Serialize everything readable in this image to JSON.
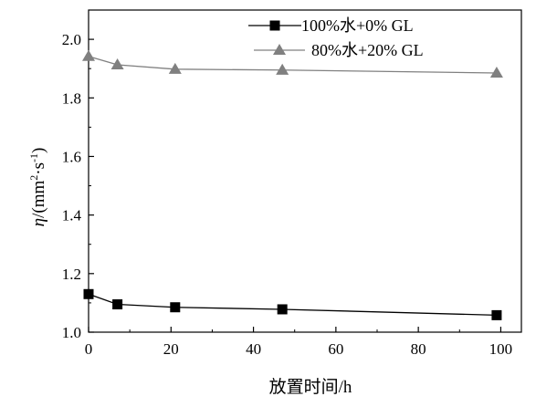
{
  "chart_data": {
    "type": "line",
    "title": "",
    "xlabel": "放置时间/h",
    "ylabel": "η/(mm²·s⁻¹)",
    "ylabel_parts": {
      "eta": "η",
      "open": "/(mm",
      "sup2": "2",
      "dot": "·s",
      "supm1": "-1",
      "close": ")"
    },
    "xlim": [
      0,
      105
    ],
    "ylim": [
      1.0,
      2.1
    ],
    "xticks": [
      0,
      20,
      40,
      60,
      80,
      100
    ],
    "yticks": [
      1.0,
      1.2,
      1.4,
      1.6,
      1.8,
      2.0
    ],
    "xtick_labels": [
      "0",
      "20",
      "40",
      "60",
      "80",
      "100"
    ],
    "ytick_labels": [
      "1.0",
      "1.2",
      "1.4",
      "1.6",
      "1.8",
      "2.0"
    ],
    "grid": false,
    "legend_position": "top-right",
    "series": [
      {
        "name": "100%水+0% GL",
        "marker": "square",
        "color": "#000000",
        "x": [
          0,
          7,
          21,
          47,
          99
        ],
        "y": [
          1.13,
          1.095,
          1.085,
          1.078,
          1.058
        ]
      },
      {
        "name": "80%水+20% GL",
        "marker": "triangle",
        "color": "#808080",
        "x": [
          0,
          7,
          21,
          47,
          99
        ],
        "y": [
          1.942,
          1.913,
          1.898,
          1.895,
          1.885
        ]
      }
    ]
  }
}
